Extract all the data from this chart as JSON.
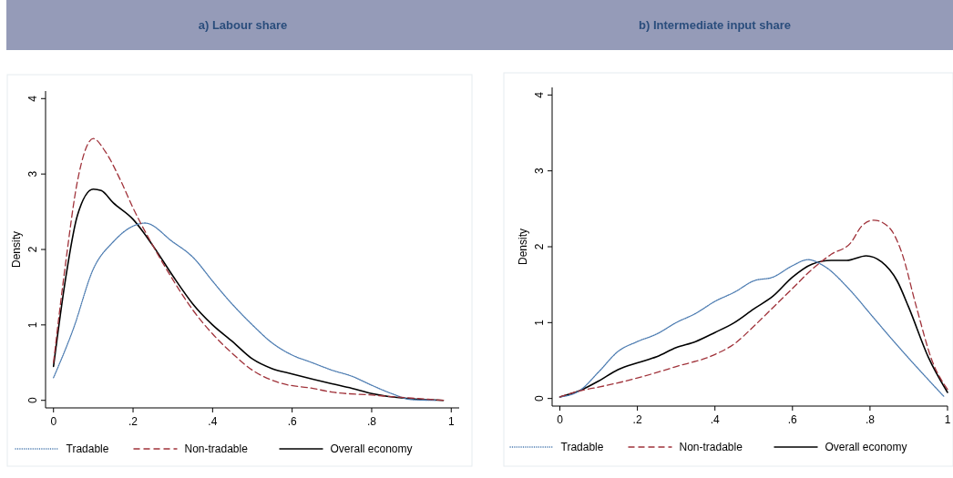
{
  "chart_data": [
    {
      "type": "line",
      "title": "a) Labour share",
      "ylabel": "Density",
      "xlim": [
        -0.02,
        1.02
      ],
      "ylim": [
        -0.1,
        4.1
      ],
      "xticks": [
        {
          "value": 0,
          "label": "0"
        },
        {
          "value": 0.2,
          "label": ".2"
        },
        {
          "value": 0.4,
          "label": ".4"
        },
        {
          "value": 0.6,
          "label": ".6"
        },
        {
          "value": 0.8,
          "label": ".8"
        },
        1
      ],
      "yticks": [
        {
          "value": 0,
          "label": "0"
        },
        1,
        2,
        3,
        4
      ],
      "legend": "bottom",
      "grid": false,
      "series": [
        {
          "name": "Tradable",
          "color": "#4a7ab0",
          "line_style": "dotted",
          "x": [
            0,
            0.05,
            0.1,
            0.15,
            0.2,
            0.23,
            0.3,
            0.35,
            0.4,
            0.43,
            0.5,
            0.55,
            0.6,
            0.65,
            0.7,
            0.75,
            0.8,
            0.85,
            0.9,
            0.96
          ],
          "values": [
            0.3,
            0.95,
            1.74,
            2.1,
            2.31,
            2.35,
            2.1,
            1.9,
            1.58,
            1.39,
            1.0,
            0.76,
            0.6,
            0.5,
            0.4,
            0.32,
            0.2,
            0.09,
            0.01,
            0
          ]
        },
        {
          "name": "Non-tradable",
          "color": "#a0323a",
          "line_style": "dashed",
          "x": [
            0,
            0.03,
            0.06,
            0.1,
            0.13,
            0.17,
            0.2,
            0.25,
            0.3,
            0.35,
            0.4,
            0.45,
            0.5,
            0.57,
            0.65,
            0.7,
            0.8,
            0.9,
            0.98
          ],
          "values": [
            0.5,
            1.8,
            2.9,
            3.47,
            3.3,
            2.9,
            2.55,
            2.05,
            1.6,
            1.2,
            0.88,
            0.62,
            0.4,
            0.23,
            0.16,
            0.11,
            0.07,
            0.03,
            0
          ]
        },
        {
          "name": "Overall economy",
          "color": "#000000",
          "line_style": "solid",
          "x": [
            0,
            0.03,
            0.06,
            0.1,
            0.12,
            0.15,
            0.2,
            0.25,
            0.3,
            0.35,
            0.4,
            0.45,
            0.5,
            0.55,
            0.6,
            0.7,
            0.75,
            0.8,
            0.9,
            0.98
          ],
          "values": [
            0.45,
            1.6,
            2.45,
            2.8,
            2.78,
            2.62,
            2.4,
            2.05,
            1.65,
            1.28,
            1.0,
            0.78,
            0.55,
            0.42,
            0.35,
            0.22,
            0.16,
            0.09,
            0.02,
            0
          ]
        }
      ]
    },
    {
      "type": "line",
      "title": "b) Intermediate input share",
      "ylabel": "Density",
      "xlim": [
        -0.02,
        1.0
      ],
      "ylim": [
        -0.1,
        4.1
      ],
      "xticks": [
        {
          "value": 0,
          "label": "0"
        },
        {
          "value": 0.2,
          "label": ".2"
        },
        {
          "value": 0.4,
          "label": ".4"
        },
        {
          "value": 0.6,
          "label": ".6"
        },
        {
          "value": 0.8,
          "label": ".8"
        },
        1
      ],
      "yticks": [
        {
          "value": 0,
          "label": "0"
        },
        1,
        2,
        3,
        4
      ],
      "legend": "bottom",
      "grid": false,
      "series": [
        {
          "name": "Tradable",
          "color": "#4a7ab0",
          "line_style": "dotted",
          "x": [
            0,
            0.05,
            0.1,
            0.15,
            0.2,
            0.25,
            0.3,
            0.35,
            0.4,
            0.45,
            0.5,
            0.55,
            0.6,
            0.64,
            0.68,
            0.75,
            0.8,
            0.85,
            0.9,
            0.95,
            0.99
          ],
          "values": [
            0.02,
            0.1,
            0.35,
            0.62,
            0.75,
            0.85,
            1.0,
            1.12,
            1.28,
            1.4,
            1.55,
            1.6,
            1.75,
            1.83,
            1.75,
            1.42,
            1.12,
            0.82,
            0.53,
            0.25,
            0.03
          ]
        },
        {
          "name": "Non-tradable",
          "color": "#a0323a",
          "line_style": "dashed",
          "x": [
            0,
            0.05,
            0.1,
            0.2,
            0.3,
            0.4,
            0.45,
            0.5,
            0.55,
            0.6,
            0.65,
            0.7,
            0.75,
            0.78,
            0.81,
            0.85,
            0.88,
            0.92,
            0.96,
            1.0
          ],
          "values": [
            0.02,
            0.1,
            0.15,
            0.27,
            0.42,
            0.58,
            0.72,
            0.95,
            1.2,
            1.45,
            1.7,
            1.9,
            2.05,
            2.28,
            2.35,
            2.25,
            1.95,
            1.2,
            0.5,
            0.12
          ]
        },
        {
          "name": "Overall economy",
          "color": "#000000",
          "line_style": "solid",
          "x": [
            0,
            0.05,
            0.1,
            0.15,
            0.2,
            0.25,
            0.3,
            0.35,
            0.4,
            0.45,
            0.5,
            0.55,
            0.6,
            0.65,
            0.7,
            0.74,
            0.79,
            0.83,
            0.87,
            0.9,
            0.95,
            1.0
          ],
          "values": [
            0.02,
            0.1,
            0.23,
            0.38,
            0.47,
            0.55,
            0.67,
            0.75,
            0.87,
            1.0,
            1.18,
            1.35,
            1.6,
            1.77,
            1.82,
            1.82,
            1.88,
            1.8,
            1.55,
            1.2,
            0.55,
            0.08
          ]
        }
      ]
    }
  ]
}
